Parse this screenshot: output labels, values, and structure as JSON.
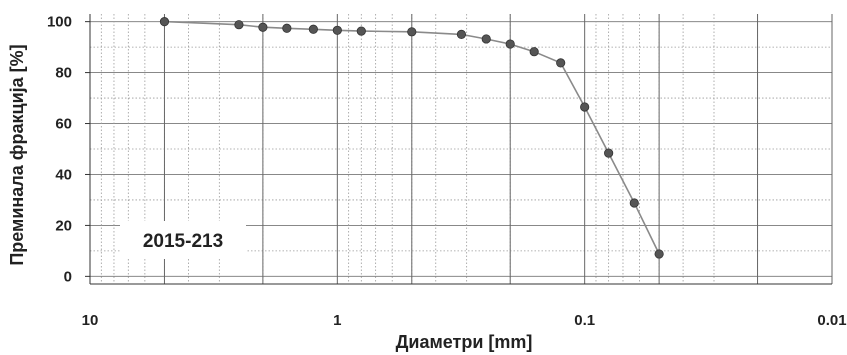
{
  "chart_data": {
    "type": "scatter",
    "title": "",
    "xlabel": "Диаметри [mm]",
    "ylabel": "Преминала фракција [%]",
    "x_scale": "log",
    "x_reversed": true,
    "xlim": [
      10,
      0.01
    ],
    "ylim": [
      -3,
      103
    ],
    "x_ticks": [
      10,
      1,
      0.1,
      0.01
    ],
    "x_tick_labels": [
      "10",
      "1",
      "0.1",
      "0.01"
    ],
    "y_ticks": [
      0,
      20,
      40,
      60,
      80,
      100
    ],
    "y_tick_labels": [
      "0",
      "20",
      "40",
      "60",
      "80",
      "100"
    ],
    "grid": true,
    "annotation": "2015-213",
    "series": [
      {
        "x": [
          5,
          2.5,
          2,
          1.6,
          1.25,
          1,
          0.8,
          0.5,
          0.315,
          0.25,
          0.2,
          0.16,
          0.125,
          0.1,
          0.08,
          0.063,
          0.05
        ],
        "y": [
          100,
          98.8,
          97.8,
          97.4,
          97,
          96.6,
          96.3,
          96,
          95,
          93.2,
          91.2,
          88.2,
          83.8,
          66.5,
          48.4,
          28.8,
          8.8
        ]
      }
    ],
    "colors": {
      "line": "#8a8a8a",
      "marker": "#555555",
      "grid": "#9a9a9a",
      "axis": "#333333"
    }
  }
}
